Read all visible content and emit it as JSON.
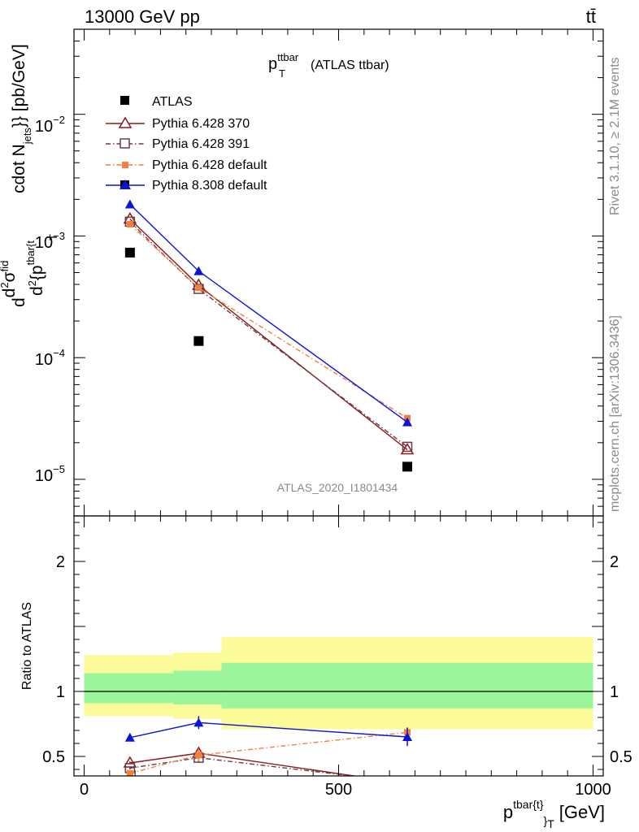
{
  "header": {
    "beam": "13000 GeV pp",
    "process": "tt̄"
  },
  "side": {
    "rivet": "Rivet 3.1.10, ≥ 2.1M events",
    "site": "mcplots.cern.ch [arXiv:1306.3436]"
  },
  "chart_data": [
    {
      "type": "line",
      "panel": "main",
      "title_main": "p",
      "title_sup": "ttbar",
      "title_sub": "T",
      "title_rest": "(ATLAS ttbar)",
      "ylabel": "d d²σ^{fid} / d² {p_T^{tbar{t}} cdot N_jets}} [pb/GeV]",
      "ylabel_parts": {
        "d": "d",
        "num": "d",
        "num_sup": "2",
        "sigma": "σ",
        "sigma_sup": "fid",
        "den": "d",
        "den_sup": "2",
        "den_rest": "{p",
        "den_sub": "tbar{t",
        "den_sub2": "T",
        "tail": "cdot N",
        "tail_sub": "jets",
        "tail_end": "}} [pb/GeV]"
      },
      "yscale": "log",
      "ylim": [
        5e-06,
        0.05
      ],
      "xlim": [
        -20,
        1020
      ],
      "yticklabels": [
        {
          "value": 0.01,
          "base": "10",
          "exp": "−2"
        },
        {
          "value": 0.001,
          "base": "10",
          "exp": "−3"
        },
        {
          "value": 0.0001,
          "base": "10",
          "exp": "−4"
        },
        {
          "value": 1e-05,
          "base": "10",
          "exp": "−5"
        }
      ],
      "watermark": "ATLAS_2020_I1801434",
      "legend_position": "top-left",
      "series": [
        {
          "name": "ATLAS",
          "color": "#000000",
          "marker": "square-filled",
          "line": "none",
          "x": [
            90,
            225,
            635
          ],
          "y": [
            0.00073,
            0.000137,
            1.27e-05
          ],
          "yerr": [
            0,
            0,
            0
          ]
        },
        {
          "name": "Pythia 6.428 370",
          "color": "#8b1a1a",
          "marker": "triangle-open",
          "line": "solid",
          "x": [
            90,
            225,
            635
          ],
          "y": [
            0.00138,
            0.000393,
            1.75e-05
          ]
        },
        {
          "name": "Pythia 6.428 391",
          "color": "#6e3a4a",
          "marker": "square-open",
          "line": "dashdot",
          "x": [
            90,
            225,
            635
          ],
          "y": [
            0.00131,
            0.000367,
            1.85e-05
          ]
        },
        {
          "name": "Pythia 6.428 default",
          "color": "#f47f3a",
          "marker": "square-filled-small",
          "line": "dashdot",
          "x": [
            90,
            225,
            635
          ],
          "y": [
            0.00125,
            0.000375,
            3.18e-05
          ]
        },
        {
          "name": "Pythia 8.308 default",
          "color": "#0a14d6",
          "marker": "triangle-filled",
          "line": "solid",
          "x": [
            90,
            225,
            635
          ],
          "y": [
            0.00182,
            0.000515,
            2.95e-05
          ]
        }
      ]
    },
    {
      "type": "line",
      "panel": "ratio",
      "ylabel": "Ratio to ATLAS",
      "ylim": [
        0.35,
        2.35
      ],
      "xlim": [
        -20,
        1020
      ],
      "yticks": [
        0.5,
        1,
        2
      ],
      "yticklabels": [
        "0.5",
        "1",
        "2"
      ],
      "xticks": [
        0,
        500,
        1000
      ],
      "xticklabels": [
        "0",
        "500",
        "1000"
      ],
      "xlabel_main": "p",
      "xlabel_sup": "tbar{t}",
      "xlabel_sub": "}",
      "xlabel_sub2": "T",
      "xlabel_unit": "[GeV]",
      "bands": [
        {
          "x0": 0,
          "x1": 175,
          "inner": [
            0.91,
            1.14
          ],
          "outer": [
            0.81,
            1.28
          ]
        },
        {
          "x0": 175,
          "x1": 270,
          "inner": [
            0.9,
            1.16
          ],
          "outer": [
            0.79,
            1.3
          ]
        },
        {
          "x0": 270,
          "x1": 1000,
          "inner": [
            0.87,
            1.22
          ],
          "outer": [
            0.71,
            1.42
          ]
        }
      ],
      "series": [
        {
          "name": "Pythia 6.428 370",
          "color": "#8b1a1a",
          "marker": "triangle-open",
          "line": "solid",
          "x": [
            90,
            225,
            635
          ],
          "y": [
            0.45,
            0.525,
            0.29
          ],
          "yerr": [
            0.01,
            0.04,
            0.02
          ]
        },
        {
          "name": "Pythia 6.428 391",
          "color": "#6e3a4a",
          "marker": "square-open",
          "line": "dashdot",
          "x": [
            90,
            225,
            635
          ],
          "y": [
            0.41,
            0.49,
            0.3
          ],
          "yerr": [
            0.01,
            0.04,
            0.02
          ]
        },
        {
          "name": "Pythia 6.428 default",
          "color": "#f47f3a",
          "marker": "square-filled-small",
          "line": "dashdot",
          "x": [
            90,
            225,
            635
          ],
          "y": [
            0.37,
            0.51,
            0.685
          ],
          "yerr": [
            0.01,
            0.05,
            0.04
          ]
        },
        {
          "name": "Pythia 8.308 default",
          "color": "#0a14d6",
          "marker": "triangle-filled",
          "line": "solid",
          "x": [
            90,
            225,
            635
          ],
          "y": [
            0.645,
            0.76,
            0.65
          ],
          "yerr": [
            0.015,
            0.05,
            0.07
          ]
        }
      ]
    }
  ]
}
